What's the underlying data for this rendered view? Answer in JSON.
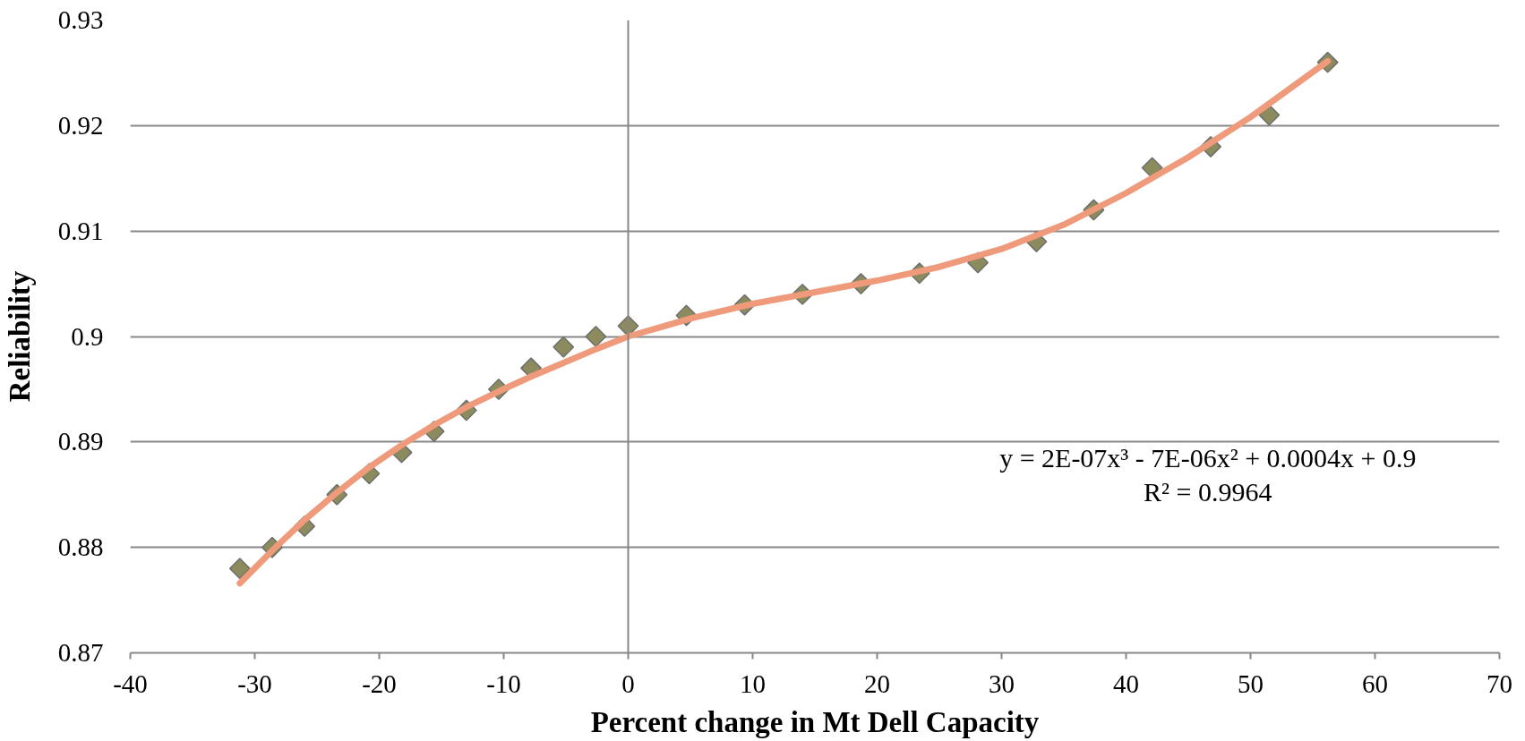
{
  "chart_data": {
    "type": "scatter",
    "xlabel": "Percent change in Mt Dell Capacity",
    "ylabel": "Reliability",
    "xlim": [
      -40,
      70
    ],
    "ylim": [
      0.87,
      0.93
    ],
    "xticks": [
      -40,
      -30,
      -20,
      -10,
      0,
      10,
      20,
      30,
      40,
      50,
      60,
      70
    ],
    "yticks": [
      0.87,
      0.88,
      0.89,
      0.9,
      0.91,
      0.92,
      0.93
    ],
    "grid": "y",
    "series": [
      {
        "color": "#8c8b5d",
        "marker": "diamond",
        "x": [
          -31.2,
          -28.6,
          -26.0,
          -23.4,
          -20.8,
          -18.2,
          -15.6,
          -13.0,
          -10.4,
          -7.8,
          -5.2,
          -2.6,
          0,
          4.68,
          9.36,
          14.0,
          18.7,
          23.4,
          28.1,
          32.8,
          37.4,
          42.1,
          46.8,
          51.5,
          56.2
        ],
        "values": [
          0.878,
          0.88,
          0.882,
          0.885,
          0.887,
          0.889,
          0.891,
          0.893,
          0.895,
          0.897,
          0.899,
          0.9,
          0.901,
          0.902,
          0.903,
          0.904,
          0.905,
          0.906,
          0.907,
          0.909,
          0.912,
          0.916,
          0.918,
          0.921,
          0.926
        ]
      },
      {
        "type": "line",
        "color": "#ee9a7b",
        "x": [
          -31.2,
          -28.6,
          -26.0,
          -23.4,
          -20.8,
          -18.2,
          -15.6,
          -13.0,
          -10.4,
          -7.8,
          -5.2,
          -2.6,
          0,
          5,
          10,
          15,
          20,
          25,
          30,
          35,
          40,
          45,
          50,
          56.2
        ],
        "values": [
          0.8766,
          0.8797,
          0.8826,
          0.8852,
          0.8876,
          0.8897,
          0.8916,
          0.8933,
          0.8948,
          0.8962,
          0.8975,
          0.8988,
          0.9,
          0.9017,
          0.9031,
          0.9042,
          0.9053,
          0.9066,
          0.9083,
          0.9106,
          0.9136,
          0.917,
          0.9208,
          0.9261
        ]
      }
    ],
    "ref_lines": [
      {
        "axis": "x",
        "value": 0,
        "color": "#878787"
      }
    ],
    "annotations": [
      "y = 2E-07x³ - 7E-06x² + 0.0004x + 0.9",
      "R² = 0.9964"
    ]
  }
}
